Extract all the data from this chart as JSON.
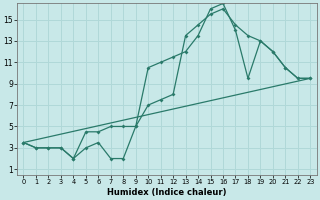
{
  "xlabel": "Humidex (Indice chaleur)",
  "bg_color": "#c8e8e8",
  "grid_color": "#b0d8d8",
  "line_color": "#2a7a6a",
  "xlim": [
    -0.5,
    23.5
  ],
  "ylim": [
    0.5,
    16.5
  ],
  "xticks": [
    0,
    1,
    2,
    3,
    4,
    5,
    6,
    7,
    8,
    9,
    10,
    11,
    12,
    13,
    14,
    15,
    16,
    17,
    18,
    19,
    20,
    21,
    22,
    23
  ],
  "yticks": [
    1,
    3,
    5,
    7,
    9,
    11,
    13,
    15
  ],
  "line1_x": [
    0,
    1,
    2,
    3,
    4,
    5,
    6,
    7,
    8,
    9,
    10,
    11,
    12,
    13,
    14,
    15,
    16,
    17,
    18,
    19,
    20,
    21,
    22,
    23
  ],
  "line1_y": [
    3.5,
    3.0,
    3.0,
    3.0,
    2.0,
    4.5,
    4.5,
    5.0,
    5.0,
    5.0,
    7.0,
    7.5,
    8.0,
    13.5,
    14.5,
    15.5,
    16.0,
    14.5,
    13.5,
    13.0,
    12.0,
    10.5,
    9.5,
    9.5
  ],
  "line2_x": [
    0,
    1,
    2,
    3,
    4,
    5,
    6,
    7,
    8,
    9,
    10,
    11,
    12,
    13,
    14,
    15,
    16,
    17,
    18,
    19,
    20,
    21,
    22,
    23
  ],
  "line2_y": [
    3.5,
    3.0,
    3.0,
    3.0,
    2.0,
    3.0,
    3.5,
    2.0,
    2.0,
    5.0,
    10.5,
    11.0,
    11.5,
    12.0,
    13.5,
    16.0,
    16.5,
    14.0,
    9.5,
    13.0,
    12.0,
    10.5,
    9.5,
    9.5
  ],
  "line3_x": [
    0,
    23
  ],
  "line3_y": [
    3.5,
    9.5
  ]
}
